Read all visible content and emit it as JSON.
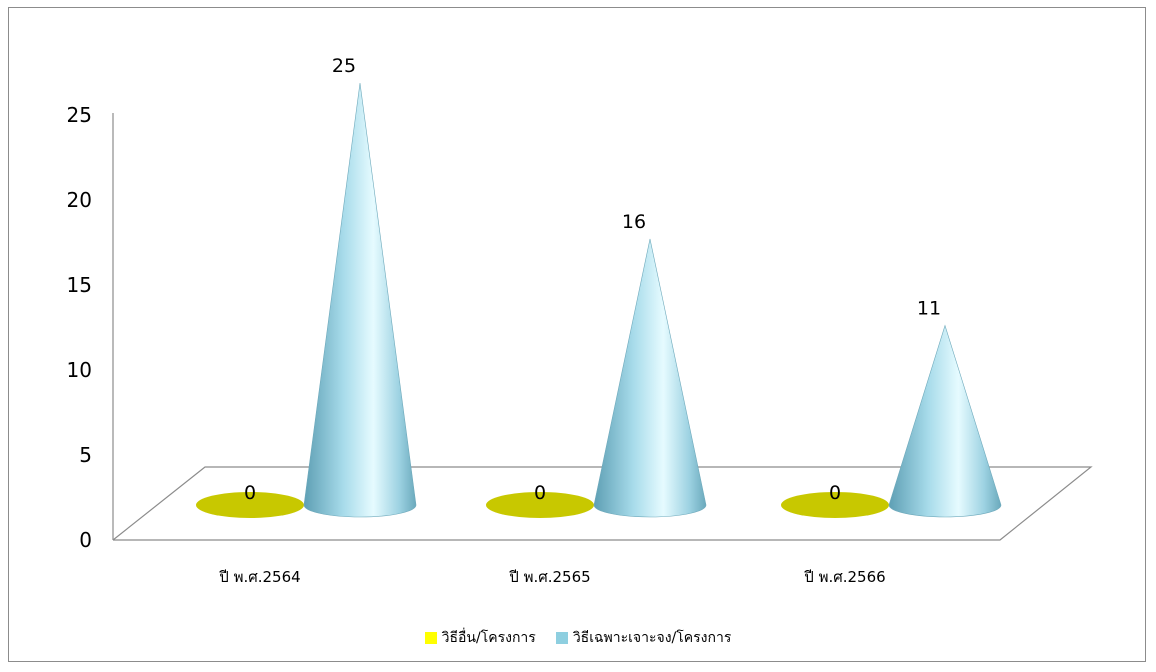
{
  "chart_data": {
    "type": "bar",
    "style": "3d-cone",
    "categories": [
      "ปี พ.ศ.2564",
      "ปี พ.ศ.2565",
      "ปี พ.ศ.2566"
    ],
    "series": [
      {
        "name": "วิธีอื่น/โครงการ",
        "values": [
          0,
          0,
          0
        ],
        "color": "#c8c800",
        "legend_color": "#ffff00"
      },
      {
        "name": "วิธีเฉพาะเจาะจง/โครงการ",
        "values": [
          25,
          16,
          11
        ],
        "color": "#8ecfe0",
        "legend_color": "#8ecfe0"
      }
    ],
    "yticks": [
      "0",
      "5",
      "10",
      "15",
      "20",
      "25"
    ],
    "ylim": [
      0,
      25
    ],
    "legend_position": "bottom",
    "grid": false
  }
}
